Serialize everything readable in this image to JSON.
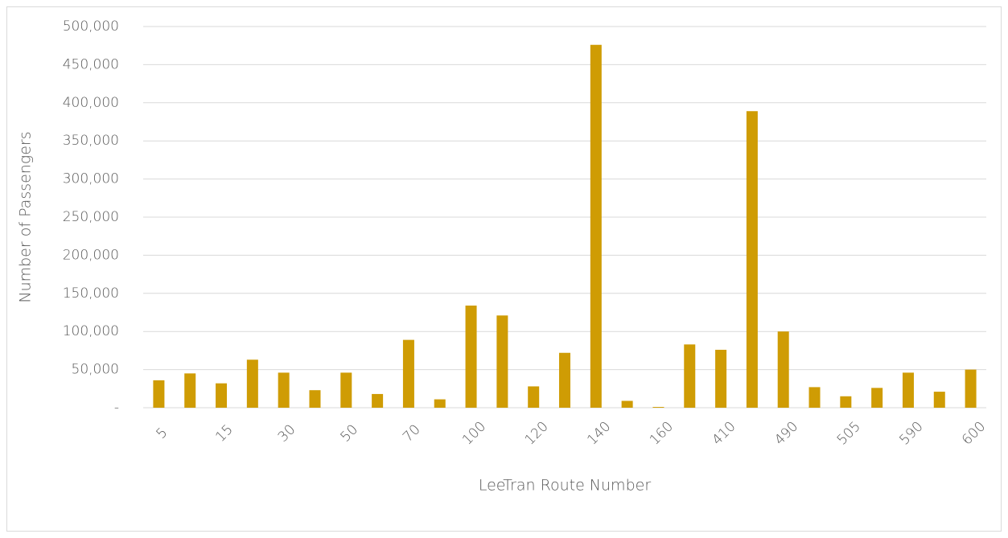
{
  "chart_data": {
    "type": "bar",
    "x_label": "LeeTran Route Number",
    "y_label": "Number of Passengers",
    "categories": [
      "5",
      null,
      "15",
      null,
      "30",
      null,
      "50",
      null,
      "70",
      null,
      "100",
      null,
      "120",
      null,
      "140",
      null,
      "160",
      null,
      "410",
      null,
      "490",
      null,
      "505",
      null,
      "590",
      null,
      "600"
    ],
    "values": [
      36000,
      45000,
      32000,
      63000,
      46000,
      23000,
      46000,
      18000,
      89000,
      11000,
      134000,
      121000,
      28000,
      72000,
      476000,
      9000,
      1000,
      83000,
      76000,
      389000,
      100000,
      27000,
      15000,
      26000,
      46000,
      21000,
      50000
    ],
    "color": "#cf9c04",
    "ylim": [
      0,
      500000
    ],
    "yticks": [
      {
        "value": 0,
        "label": "-"
      },
      {
        "value": 50000,
        "label": "50,000"
      },
      {
        "value": 100000,
        "label": "100,000"
      },
      {
        "value": 150000,
        "label": "150,000"
      },
      {
        "value": 200000,
        "label": "200,000"
      },
      {
        "value": 250000,
        "label": "250,000"
      },
      {
        "value": 300000,
        "label": "300,000"
      },
      {
        "value": 350000,
        "label": "350,000"
      },
      {
        "value": 400000,
        "label": "400,000"
      },
      {
        "value": 450000,
        "label": "450,000"
      },
      {
        "value": 500000,
        "label": "500,000"
      }
    ],
    "grid": true
  }
}
